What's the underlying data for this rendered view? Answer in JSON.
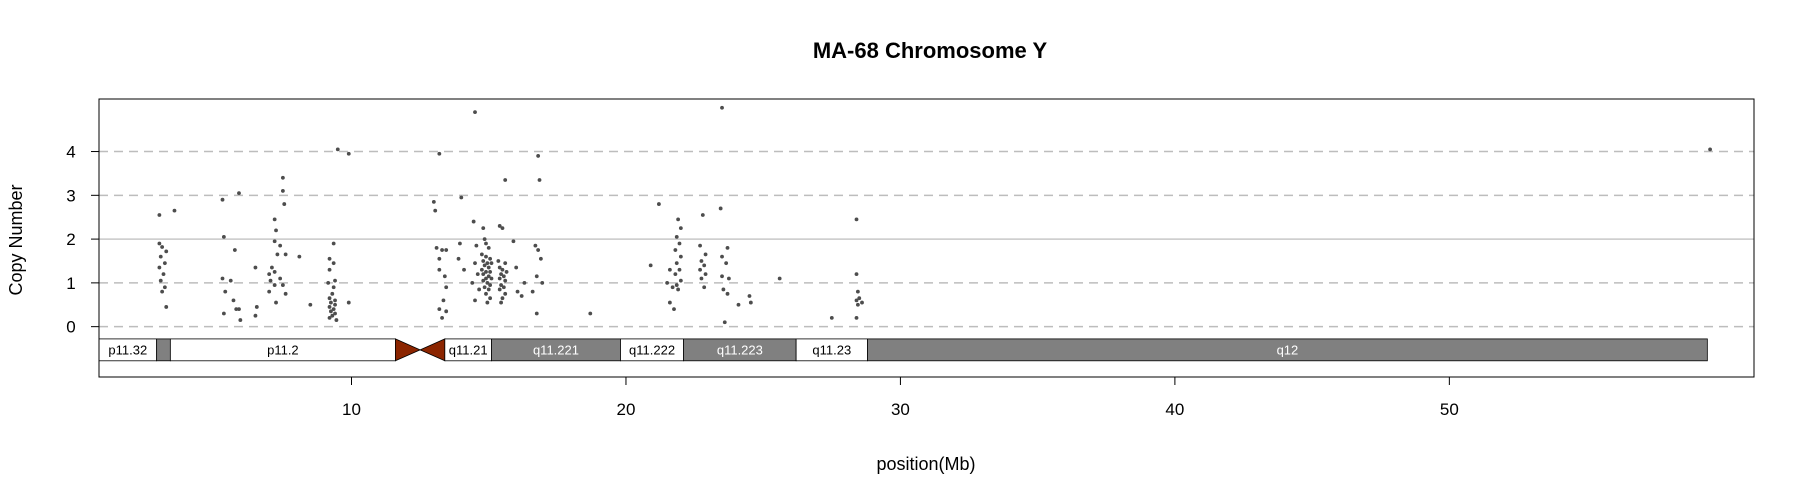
{
  "chart_data": {
    "type": "scatter",
    "title": "MA-68  Chromosome Y",
    "xlabel": "position(Mb)",
    "ylabel": "Copy Number",
    "xlim": [
      0.8,
      61.1
    ],
    "ylim": [
      -1.15,
      5.2
    ],
    "x_ticks": [
      10,
      20,
      30,
      40,
      50
    ],
    "y_ticks": [
      0,
      1,
      2,
      3,
      4
    ],
    "reference_lines": {
      "dashed": [
        0,
        1,
        3,
        4
      ],
      "solid": [
        2
      ],
      "colors": {
        "dashed": "#bdbdbd",
        "solid": "#c8c8c8"
      }
    },
    "ideogram": {
      "y_range": [
        -0.78,
        -0.28
      ],
      "bands": [
        {
          "name": "p11.32",
          "start": 0.8,
          "end": 2.9,
          "stain": "white",
          "label": "p11.32"
        },
        {
          "name": "p11.31",
          "start": 2.9,
          "end": 3.4,
          "stain": "gray",
          "label": ""
        },
        {
          "name": "p11.2",
          "start": 3.4,
          "end": 11.6,
          "stain": "white",
          "label": "p11.2"
        },
        {
          "name": "p11.1",
          "start": 11.6,
          "end": 12.5,
          "stain": "centromere-p",
          "label": ""
        },
        {
          "name": "q11.1",
          "start": 12.5,
          "end": 13.4,
          "stain": "centromere-q",
          "label": ""
        },
        {
          "name": "q11.21",
          "start": 13.4,
          "end": 15.1,
          "stain": "white",
          "label": "q11.21"
        },
        {
          "name": "q11.221",
          "start": 15.1,
          "end": 19.8,
          "stain": "gray",
          "label": "q11.221"
        },
        {
          "name": "q11.222",
          "start": 19.8,
          "end": 22.1,
          "stain": "white",
          "label": "q11.222"
        },
        {
          "name": "q11.223",
          "start": 22.1,
          "end": 26.2,
          "stain": "gray",
          "label": "q11.223"
        },
        {
          "name": "q11.23",
          "start": 26.2,
          "end": 28.8,
          "stain": "white",
          "label": "q11.23"
        },
        {
          "name": "q12",
          "start": 28.8,
          "end": 59.4,
          "stain": "gray",
          "label": "q12"
        }
      ],
      "colors": {
        "white": "#ffffff",
        "gray": "#808080",
        "centromere": "#8b2500",
        "label_on_gray": "#ffffff",
        "label_on_white": "#000000"
      }
    },
    "point_color": "#4d4d4d",
    "series": [
      {
        "values": [
          [
            3.0,
            2.55
          ],
          [
            3.55,
            2.65
          ],
          [
            3.0,
            1.9
          ],
          [
            3.1,
            1.82
          ],
          [
            3.25,
            1.72
          ],
          [
            3.05,
            1.6
          ],
          [
            3.2,
            1.45
          ],
          [
            3.0,
            1.35
          ],
          [
            3.15,
            1.2
          ],
          [
            3.05,
            1.05
          ],
          [
            3.2,
            0.9
          ],
          [
            3.1,
            0.8
          ],
          [
            3.25,
            0.45
          ],
          [
            5.3,
            2.9
          ],
          [
            5.35,
            2.05
          ],
          [
            5.75,
            1.75
          ],
          [
            5.3,
            1.1
          ],
          [
            5.6,
            1.05
          ],
          [
            5.4,
            0.8
          ],
          [
            5.7,
            0.6
          ],
          [
            5.8,
            0.4
          ],
          [
            5.9,
            0.4
          ],
          [
            5.35,
            0.3
          ],
          [
            5.95,
            0.15
          ],
          [
            5.9,
            3.05
          ],
          [
            6.5,
            1.35
          ],
          [
            6.55,
            0.45
          ],
          [
            6.5,
            0.25
          ],
          [
            7.5,
            3.4
          ],
          [
            7.5,
            3.1
          ],
          [
            7.55,
            2.8
          ],
          [
            7.2,
            2.45
          ],
          [
            7.25,
            2.2
          ],
          [
            7.2,
            1.95
          ],
          [
            7.4,
            1.85
          ],
          [
            7.3,
            1.65
          ],
          [
            7.6,
            1.65
          ],
          [
            7.1,
            1.35
          ],
          [
            7.2,
            1.25
          ],
          [
            7.0,
            1.2
          ],
          [
            7.4,
            1.1
          ],
          [
            7.05,
            1.05
          ],
          [
            7.2,
            0.95
          ],
          [
            7.5,
            0.95
          ],
          [
            7.0,
            0.8
          ],
          [
            7.6,
            0.75
          ],
          [
            7.25,
            0.55
          ],
          [
            8.1,
            1.6
          ],
          [
            8.5,
            0.5
          ],
          [
            9.5,
            4.05
          ],
          [
            9.35,
            1.9
          ],
          [
            9.2,
            1.55
          ],
          [
            9.35,
            1.45
          ],
          [
            9.2,
            1.3
          ],
          [
            9.4,
            1.05
          ],
          [
            9.15,
            1.0
          ],
          [
            9.35,
            0.9
          ],
          [
            9.3,
            0.75
          ],
          [
            9.2,
            0.65
          ],
          [
            9.4,
            0.6
          ],
          [
            9.25,
            0.55
          ],
          [
            9.4,
            0.5
          ],
          [
            9.2,
            0.45
          ],
          [
            9.35,
            0.4
          ],
          [
            9.25,
            0.35
          ],
          [
            9.4,
            0.3
          ],
          [
            9.3,
            0.25
          ],
          [
            9.2,
            0.2
          ],
          [
            9.45,
            0.15
          ],
          [
            9.9,
            3.95
          ],
          [
            9.9,
            0.55
          ],
          [
            13.0,
            2.85
          ],
          [
            13.05,
            2.65
          ],
          [
            13.2,
            3.95
          ],
          [
            13.1,
            1.8
          ],
          [
            13.3,
            1.75
          ],
          [
            13.2,
            1.55
          ],
          [
            13.45,
            1.75
          ],
          [
            13.2,
            1.3
          ],
          [
            13.4,
            1.15
          ],
          [
            13.45,
            0.9
          ],
          [
            13.35,
            0.6
          ],
          [
            13.2,
            0.4
          ],
          [
            13.45,
            0.35
          ],
          [
            13.3,
            0.2
          ],
          [
            14.0,
            2.95
          ],
          [
            13.9,
            1.55
          ],
          [
            13.95,
            1.9
          ],
          [
            14.1,
            1.3
          ],
          [
            14.5,
            4.9
          ],
          [
            14.45,
            2.4
          ],
          [
            14.55,
            1.85
          ],
          [
            14.5,
            1.45
          ],
          [
            14.6,
            1.2
          ],
          [
            14.4,
            1.0
          ],
          [
            14.65,
            0.85
          ],
          [
            14.5,
            0.6
          ],
          [
            14.8,
            2.25
          ],
          [
            14.85,
            2.0
          ],
          [
            14.9,
            1.9
          ],
          [
            15.0,
            1.8
          ],
          [
            14.75,
            1.65
          ],
          [
            14.9,
            1.6
          ],
          [
            15.05,
            1.55
          ],
          [
            14.8,
            1.5
          ],
          [
            14.95,
            1.45
          ],
          [
            15.1,
            1.45
          ],
          [
            14.85,
            1.4
          ],
          [
            15.0,
            1.35
          ],
          [
            14.75,
            1.3
          ],
          [
            14.9,
            1.25
          ],
          [
            15.05,
            1.25
          ],
          [
            14.8,
            1.2
          ],
          [
            15.0,
            1.15
          ],
          [
            14.9,
            1.1
          ],
          [
            15.1,
            1.1
          ],
          [
            14.8,
            1.05
          ],
          [
            14.95,
            1.0
          ],
          [
            15.05,
            0.95
          ],
          [
            14.85,
            0.9
          ],
          [
            15.0,
            0.85
          ],
          [
            14.9,
            0.75
          ],
          [
            15.05,
            0.65
          ],
          [
            14.95,
            0.55
          ],
          [
            15.4,
            2.3
          ],
          [
            15.5,
            2.25
          ],
          [
            15.35,
            1.5
          ],
          [
            15.6,
            1.45
          ],
          [
            15.4,
            1.35
          ],
          [
            15.5,
            1.3
          ],
          [
            15.65,
            1.25
          ],
          [
            15.45,
            1.2
          ],
          [
            15.55,
            1.15
          ],
          [
            15.4,
            1.1
          ],
          [
            15.6,
            1.05
          ],
          [
            15.45,
            0.95
          ],
          [
            15.55,
            0.9
          ],
          [
            15.4,
            0.85
          ],
          [
            15.6,
            0.75
          ],
          [
            15.5,
            0.65
          ],
          [
            15.45,
            0.55
          ],
          [
            15.9,
            1.95
          ],
          [
            16.0,
            1.35
          ],
          [
            16.05,
            0.8
          ],
          [
            16.3,
            1.0
          ],
          [
            16.2,
            0.7
          ],
          [
            15.6,
            3.35
          ],
          [
            16.8,
            3.9
          ],
          [
            16.85,
            3.35
          ],
          [
            16.7,
            1.85
          ],
          [
            16.8,
            1.75
          ],
          [
            16.9,
            1.55
          ],
          [
            16.75,
            1.15
          ],
          [
            16.95,
            1.0
          ],
          [
            16.6,
            0.8
          ],
          [
            16.75,
            0.3
          ],
          [
            18.7,
            0.3
          ],
          [
            20.9,
            1.4
          ],
          [
            21.2,
            2.8
          ],
          [
            21.6,
            1.3
          ],
          [
            21.5,
            1.0
          ],
          [
            21.7,
            0.9
          ],
          [
            21.6,
            0.55
          ],
          [
            21.75,
            0.4
          ],
          [
            21.9,
            2.45
          ],
          [
            22.0,
            2.25
          ],
          [
            21.85,
            2.05
          ],
          [
            21.95,
            1.9
          ],
          [
            21.8,
            1.75
          ],
          [
            22.0,
            1.6
          ],
          [
            21.85,
            1.45
          ],
          [
            21.95,
            1.3
          ],
          [
            21.8,
            1.2
          ],
          [
            22.0,
            1.05
          ],
          [
            21.85,
            0.95
          ],
          [
            21.9,
            0.85
          ],
          [
            22.8,
            2.55
          ],
          [
            22.7,
            1.85
          ],
          [
            22.9,
            1.65
          ],
          [
            22.75,
            1.5
          ],
          [
            22.85,
            1.4
          ],
          [
            22.7,
            1.3
          ],
          [
            22.9,
            1.2
          ],
          [
            22.75,
            1.1
          ],
          [
            22.85,
            0.9
          ],
          [
            23.5,
            5.0
          ],
          [
            23.45,
            2.7
          ],
          [
            23.7,
            1.8
          ],
          [
            23.5,
            1.6
          ],
          [
            23.65,
            1.45
          ],
          [
            23.5,
            1.15
          ],
          [
            23.75,
            1.1
          ],
          [
            23.55,
            0.85
          ],
          [
            23.7,
            0.75
          ],
          [
            23.6,
            0.1
          ],
          [
            24.1,
            0.5
          ],
          [
            24.5,
            0.7
          ],
          [
            24.55,
            0.55
          ],
          [
            25.6,
            1.1
          ],
          [
            27.5,
            0.2
          ],
          [
            28.4,
            2.45
          ],
          [
            28.4,
            1.2
          ],
          [
            28.45,
            0.8
          ],
          [
            28.5,
            0.65
          ],
          [
            28.4,
            0.6
          ],
          [
            28.6,
            0.55
          ],
          [
            28.45,
            0.5
          ],
          [
            28.4,
            0.2
          ],
          [
            59.5,
            4.05
          ]
        ]
      }
    ]
  }
}
